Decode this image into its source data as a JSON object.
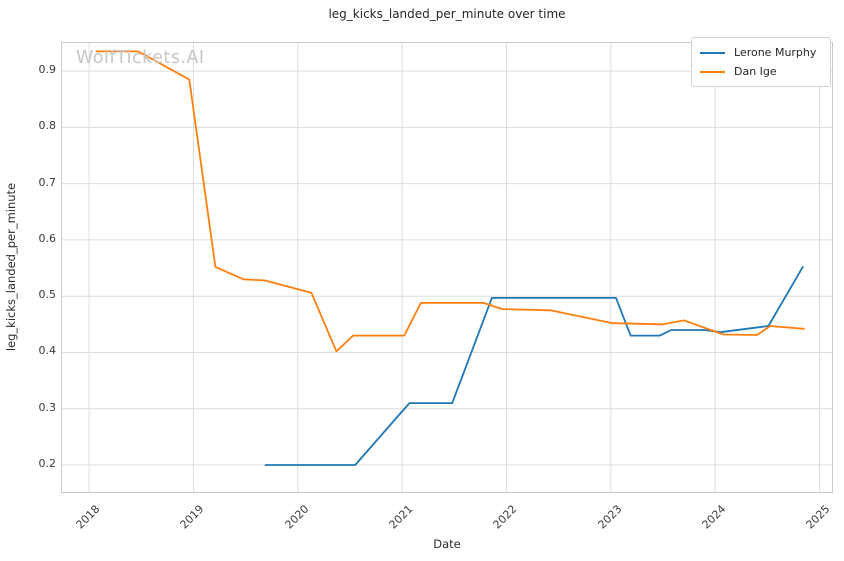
{
  "watermark": "WolfTickets.AI",
  "chart_data": {
    "type": "line",
    "title": "leg_kicks_landed_per_minute over time",
    "xlabel": "Date",
    "ylabel": "leg_kicks_landed_per_minute",
    "grid": true,
    "legend_position": "upper right",
    "x_ticks": [
      2018,
      2019,
      2020,
      2021,
      2022,
      2023,
      2024,
      2025
    ],
    "y_ticks": [
      0.2,
      0.3,
      0.4,
      0.5,
      0.6,
      0.7,
      0.8,
      0.9
    ],
    "x_range": [
      2017.74,
      2025.12
    ],
    "y_range": [
      0.152,
      0.95
    ],
    "series": [
      {
        "name": "Lerone Murphy",
        "color": "#1f77b4",
        "points": [
          [
            2019.69,
            0.2
          ],
          [
            2020.55,
            0.2
          ],
          [
            2021.07,
            0.31
          ],
          [
            2021.48,
            0.31
          ],
          [
            2021.86,
            0.497
          ],
          [
            2023.05,
            0.497
          ],
          [
            2023.19,
            0.43
          ],
          [
            2023.47,
            0.43
          ],
          [
            2023.58,
            0.44
          ],
          [
            2023.9,
            0.44
          ],
          [
            2024.05,
            0.436
          ],
          [
            2024.51,
            0.447
          ],
          [
            2024.84,
            0.552
          ]
        ]
      },
      {
        "name": "Dan Ige",
        "color": "#ff7f0e",
        "points": [
          [
            2018.07,
            0.935
          ],
          [
            2018.47,
            0.935
          ],
          [
            2018.96,
            0.885
          ],
          [
            2019.21,
            0.552
          ],
          [
            2019.48,
            0.53
          ],
          [
            2019.68,
            0.528
          ],
          [
            2020.13,
            0.506
          ],
          [
            2020.37,
            0.402
          ],
          [
            2020.53,
            0.43
          ],
          [
            2021.02,
            0.43
          ],
          [
            2021.18,
            0.488
          ],
          [
            2021.78,
            0.488
          ],
          [
            2021.96,
            0.477
          ],
          [
            2022.42,
            0.475
          ],
          [
            2023.02,
            0.452
          ],
          [
            2023.5,
            0.45
          ],
          [
            2023.7,
            0.457
          ],
          [
            2024.08,
            0.432
          ],
          [
            2024.4,
            0.431
          ],
          [
            2024.53,
            0.447
          ],
          [
            2024.85,
            0.442
          ]
        ]
      }
    ]
  }
}
